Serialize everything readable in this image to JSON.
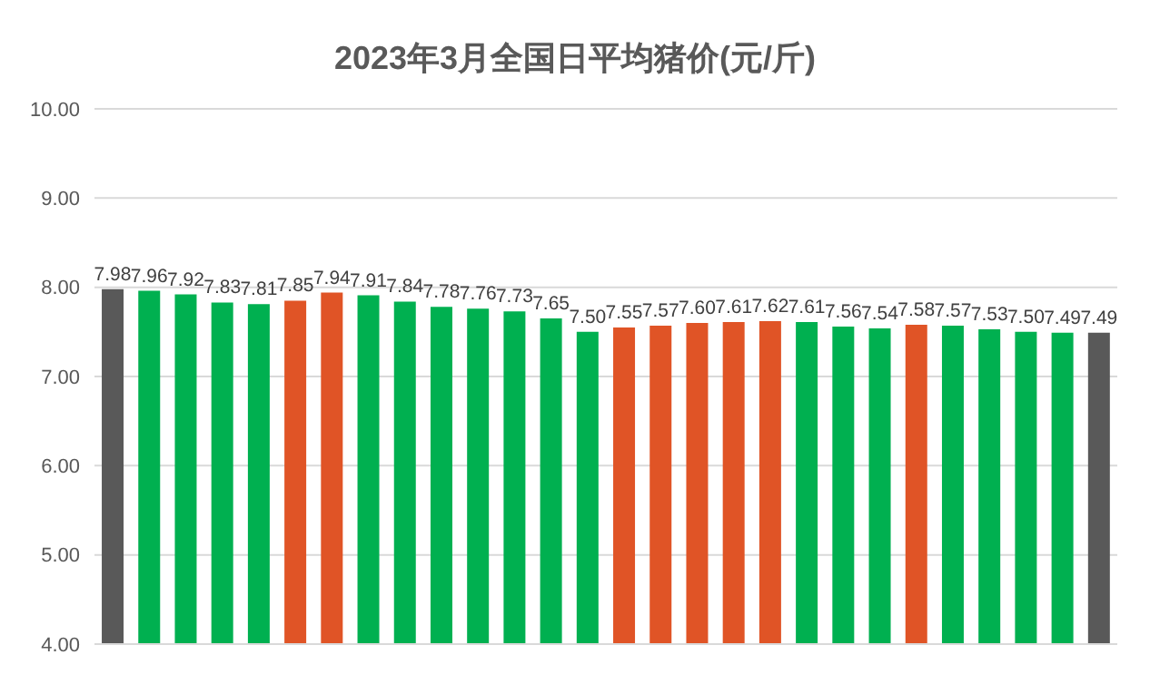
{
  "chart_data": {
    "type": "bar",
    "title": "2023年3月全国日平均猪价(元/斤)",
    "categories": [
      null,
      null,
      null,
      null,
      null,
      null,
      null,
      null,
      null,
      null,
      null,
      null,
      null,
      null,
      null,
      null,
      null,
      null,
      null,
      null,
      null,
      null,
      null,
      null,
      null,
      null,
      null,
      null
    ],
    "values": [
      7.98,
      7.96,
      7.92,
      7.83,
      7.81,
      7.85,
      7.94,
      7.91,
      7.84,
      7.78,
      7.76,
      7.73,
      7.65,
      7.5,
      7.55,
      7.57,
      7.6,
      7.61,
      7.62,
      7.61,
      7.56,
      7.54,
      7.58,
      7.57,
      7.53,
      7.5,
      7.49,
      7.49
    ],
    "value_labels": [
      "7.98",
      "7.96",
      "7.92",
      "7.83",
      "7.81",
      "7.85",
      "7.94",
      "7.91",
      "7.84",
      "7.78",
      "7.76",
      "7.73",
      "7.65",
      "7.50",
      "7.55",
      "7.57",
      "7.60",
      "7.61",
      "7.62",
      "7.61",
      "7.56",
      "7.54",
      "7.58",
      "7.57",
      "7.53",
      "7.50",
      "7.49",
      "7.49"
    ],
    "colors": [
      "#595959",
      "#00b050",
      "#00b050",
      "#00b050",
      "#00b050",
      "#e05426",
      "#e05426",
      "#00b050",
      "#00b050",
      "#00b050",
      "#00b050",
      "#00b050",
      "#00b050",
      "#00b050",
      "#e05426",
      "#e05426",
      "#e05426",
      "#e05426",
      "#e05426",
      "#00b050",
      "#00b050",
      "#00b050",
      "#e05426",
      "#00b050",
      "#00b050",
      "#00b050",
      "#00b050",
      "#595959"
    ],
    "ylim": [
      4,
      10
    ],
    "yticks": [
      {
        "value": 4,
        "label": "4.00"
      },
      {
        "value": 5,
        "label": "5.00"
      },
      {
        "value": 6,
        "label": "6.00"
      },
      {
        "value": 7,
        "label": "7.00"
      },
      {
        "value": 8,
        "label": "8.00"
      },
      {
        "value": 9,
        "label": "9.00"
      },
      {
        "value": 10,
        "label": "10.00"
      }
    ],
    "grid": "y"
  }
}
